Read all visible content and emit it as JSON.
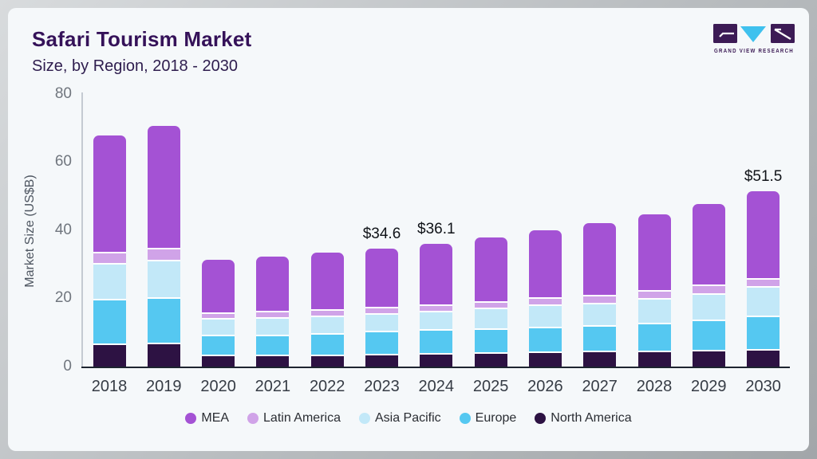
{
  "header": {
    "title": "Safari Tourism Market",
    "subtitle": "Size, by Region, 2018 - 2030"
  },
  "logo": {
    "brand": "GRAND VIEW RESEARCH"
  },
  "colors": {
    "mea": "#a452d4",
    "latin_america": "#d0a3e8",
    "asia_pacific": "#c2e8f8",
    "europe": "#55c8f1",
    "north_america": "#2d1243",
    "title_text": "#351259",
    "card_background": "#f5f8fa"
  },
  "chart_data": {
    "type": "bar",
    "stacked": true,
    "title": "Safari Tourism Market Size, by Region, 2018 - 2030",
    "xlabel": "",
    "ylabel": "Market Size (US$B)",
    "ylim": [
      0,
      80
    ],
    "yticks": [
      0,
      20,
      40,
      60,
      80
    ],
    "grid": false,
    "legend_position": "bottom",
    "categories": [
      "2018",
      "2019",
      "2020",
      "2021",
      "2022",
      "2023",
      "2024",
      "2025",
      "2026",
      "2027",
      "2028",
      "2029",
      "2030"
    ],
    "series": [
      {
        "name": "North America",
        "color": "#2d1243",
        "values": [
          6.3,
          6.5,
          3.0,
          3.0,
          3.1,
          3.3,
          3.5,
          3.7,
          3.9,
          4.1,
          4.1,
          4.4,
          4.7
        ]
      },
      {
        "name": "Europe",
        "color": "#55c8f1",
        "values": [
          13.2,
          13.5,
          6.0,
          6.0,
          6.3,
          6.7,
          7.1,
          7.1,
          7.3,
          7.5,
          8.2,
          8.9,
          9.7
        ]
      },
      {
        "name": "Asia Pacific",
        "color": "#c2e8f8",
        "values": [
          10.5,
          10.9,
          4.7,
          5.1,
          5.1,
          5.2,
          5.4,
          6.0,
          6.6,
          6.7,
          7.4,
          7.8,
          8.7
        ]
      },
      {
        "name": "Latin America",
        "color": "#d0a3e8",
        "values": [
          3.3,
          3.4,
          1.8,
          1.8,
          1.8,
          2.0,
          1.8,
          1.9,
          2.1,
          2.2,
          2.4,
          2.6,
          2.3
        ]
      },
      {
        "name": "MEA",
        "color": "#a452d4",
        "values": [
          34.6,
          36.3,
          15.8,
          16.5,
          17.2,
          17.4,
          18.3,
          19.2,
          20.2,
          21.7,
          22.7,
          24.1,
          26.1
        ]
      }
    ],
    "totals": [
      67.9,
      70.6,
      31.3,
      32.4,
      33.5,
      34.6,
      36.1,
      37.9,
      40.1,
      42.2,
      44.8,
      47.8,
      51.5
    ],
    "annotations": [
      {
        "year": "2023",
        "text": "$34.6"
      },
      {
        "year": "2024",
        "text": "$36.1"
      },
      {
        "year": "2030",
        "text": "$51.5"
      }
    ],
    "legend": [
      "MEA",
      "Latin America",
      "Asia Pacific",
      "Europe",
      "North America"
    ]
  }
}
